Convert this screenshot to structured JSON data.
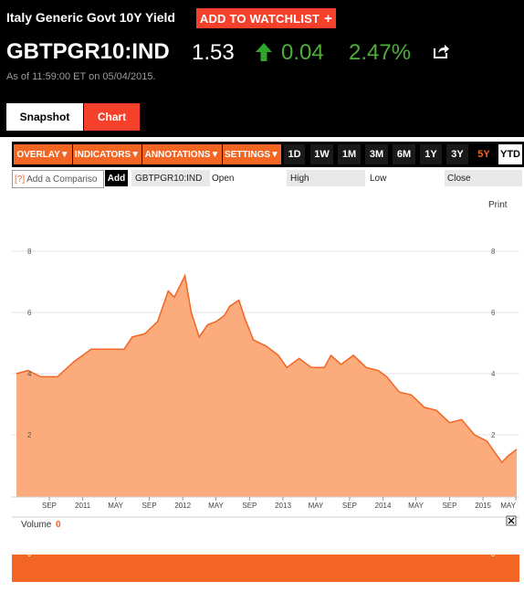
{
  "header": {
    "title": "Italy Generic Govt 10Y Yield",
    "watchlist_label": "ADD TO WATCHLIST",
    "watchlist_plus": "+",
    "ticker": "GBTPGR10:IND",
    "price": "1.53",
    "change": "0.04",
    "change_pct": "2.47%",
    "as_of": "As of 11:59:00 ET on 05/04/2015.",
    "up_color": "#4fae3a"
  },
  "tabs": {
    "snapshot": "Snapshot",
    "chart": "Chart"
  },
  "toolbar": {
    "menus": [
      "OVERLAY",
      "INDICATORS",
      "ANNOTATIONS",
      "SETTINGS"
    ],
    "ranges": [
      "1D",
      "1W",
      "1M",
      "3M",
      "6M",
      "1Y",
      "3Y",
      "5Y",
      "YTD"
    ],
    "selected_range": "5Y"
  },
  "compare": {
    "help": "[?]",
    "placeholder": "Add a Compariso",
    "add_label": "Add",
    "symbol": "GBTPGR10:IND",
    "fields": [
      "Open",
      "High",
      "Low",
      "Close"
    ]
  },
  "chart": {
    "print_label": "Print",
    "volume_label": "Volume",
    "volume_value": "0",
    "volume_axis": "0",
    "close_icon": "close-icon",
    "accent_color": "#f26522",
    "fill_color": "#fbab7c"
  },
  "chart_data": {
    "type": "area",
    "title": "",
    "xlabel": "",
    "ylabel": "",
    "ylim": [
      0,
      9
    ],
    "y_ticks": [
      2,
      4,
      6,
      8
    ],
    "x_tick_labels": [
      "SEP",
      "2011",
      "MAY",
      "SEP",
      "2012",
      "MAY",
      "SEP",
      "2013",
      "MAY",
      "SEP",
      "2014",
      "MAY",
      "SEP",
      "2015",
      "MAY"
    ],
    "x_tick_dates": [
      "2010-09-01",
      "2011-01-01",
      "2011-05-01",
      "2011-09-01",
      "2012-01-01",
      "2012-05-01",
      "2012-09-01",
      "2013-01-01",
      "2013-05-01",
      "2013-09-01",
      "2014-01-01",
      "2014-05-01",
      "2014-09-01",
      "2015-01-01",
      "2015-05-01"
    ],
    "x": [
      "2010-05-04",
      "2010-06-15",
      "2010-08-01",
      "2010-10-01",
      "2010-12-01",
      "2011-02-01",
      "2011-04-01",
      "2011-06-01",
      "2011-07-01",
      "2011-08-15",
      "2011-10-01",
      "2011-11-09",
      "2011-12-01",
      "2012-01-09",
      "2012-02-01",
      "2012-03-01",
      "2012-04-01",
      "2012-05-01",
      "2012-06-01",
      "2012-06-20",
      "2012-07-24",
      "2012-08-15",
      "2012-09-15",
      "2012-11-01",
      "2012-12-15",
      "2013-01-15",
      "2013-03-01",
      "2013-04-15",
      "2013-06-01",
      "2013-06-25",
      "2013-08-01",
      "2013-09-15",
      "2013-11-01",
      "2013-12-15",
      "2014-01-15",
      "2014-03-01",
      "2014-04-15",
      "2014-06-01",
      "2014-07-15",
      "2014-09-01",
      "2014-10-15",
      "2014-12-01",
      "2015-01-15",
      "2015-02-15",
      "2015-03-11",
      "2015-04-01",
      "2015-05-04"
    ],
    "values": [
      4.0,
      4.1,
      3.9,
      3.9,
      4.4,
      4.8,
      4.8,
      4.8,
      5.2,
      5.3,
      5.7,
      6.7,
      6.5,
      7.2,
      6.0,
      5.2,
      5.6,
      5.7,
      5.9,
      6.2,
      6.4,
      5.8,
      5.1,
      4.9,
      4.6,
      4.2,
      4.5,
      4.2,
      4.2,
      4.6,
      4.3,
      4.6,
      4.2,
      4.1,
      3.9,
      3.4,
      3.3,
      2.9,
      2.8,
      2.4,
      2.5,
      2.0,
      1.8,
      1.4,
      1.1,
      1.3,
      1.53
    ]
  }
}
